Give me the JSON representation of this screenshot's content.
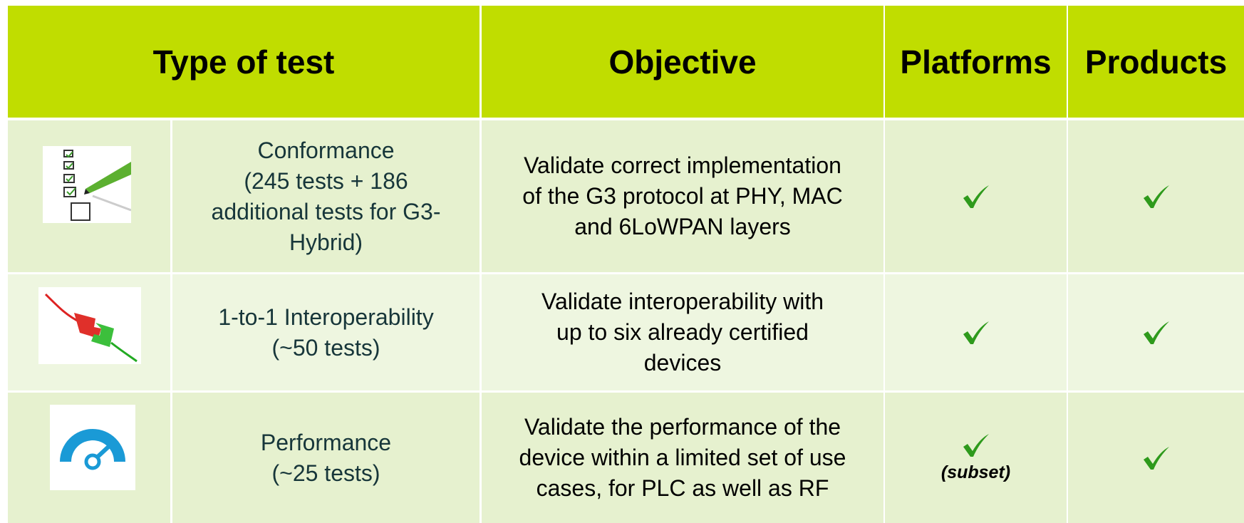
{
  "table": {
    "header": [
      "Type of test",
      "Objective",
      "Platforms",
      "Products"
    ],
    "rows": [
      {
        "type": [
          "Conformance",
          "(245 tests + 186",
          "additional tests for G3-",
          "Hybrid)"
        ],
        "objective": [
          "Validate correct implementation",
          "of the G3 protocol at PHY, MAC",
          "and 6LoWPAN layers"
        ]
      },
      {
        "type": [
          "1-to-1 Interoperability",
          "(~50 tests)"
        ],
        "objective": [
          "Validate interoperability with",
          "up to six already certified",
          "devices"
        ]
      },
      {
        "type": [
          "Performance",
          "(~25 tests)"
        ],
        "objective": [
          "Validate the performance of the",
          "device within a limited set of use",
          "cases, for PLC as well as RF"
        ],
        "platforms_note": "(subset)"
      }
    ]
  }
}
